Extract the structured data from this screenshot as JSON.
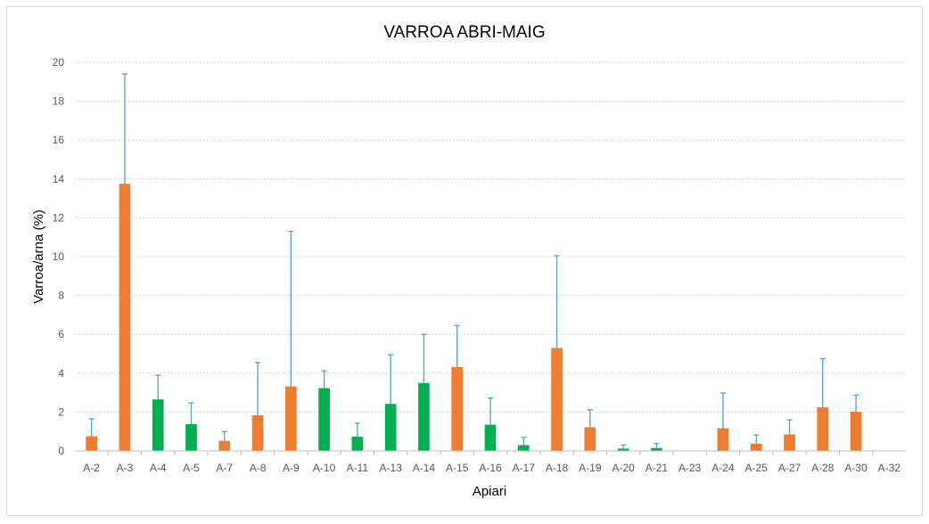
{
  "chart_data": {
    "type": "bar",
    "title": "VARROA ABRI-MAIG",
    "xlabel": "Apiari",
    "ylabel": "Varroa/arna (%)",
    "ylim": [
      0,
      20
    ],
    "yticks": [
      0,
      2,
      4,
      6,
      8,
      10,
      12,
      14,
      16,
      18,
      20
    ],
    "grid": true,
    "categories": [
      "A-2",
      "A-3",
      "A-4",
      "A-5",
      "A-7",
      "A-8",
      "A-9",
      "A-10",
      "A-11",
      "A-13",
      "A-14",
      "A-15",
      "A-16",
      "A-17",
      "A-18",
      "A-19",
      "A-20",
      "A-21",
      "A-23",
      "A-24",
      "A-25",
      "A-27",
      "A-28",
      "A-30",
      "A-32"
    ],
    "values": [
      0.75,
      13.75,
      2.65,
      1.38,
      0.52,
      1.83,
      3.32,
      3.23,
      0.73,
      2.42,
      3.5,
      4.32,
      1.35,
      0.3,
      5.3,
      1.22,
      0.12,
      0.15,
      0,
      1.17,
      0.37,
      0.85,
      2.25,
      2.02,
      0
    ],
    "error_upper": [
      1.65,
      19.4,
      3.9,
      2.47,
      1.0,
      4.55,
      11.3,
      4.12,
      1.43,
      4.95,
      6.0,
      6.45,
      2.72,
      0.7,
      10.05,
      2.12,
      0.3,
      0.38,
      0,
      2.98,
      0.82,
      1.6,
      4.75,
      2.87,
      0
    ],
    "bar_colors": [
      "#ed7d31",
      "#ed7d31",
      "#00b050",
      "#00b050",
      "#ed7d31",
      "#ed7d31",
      "#ed7d31",
      "#00b050",
      "#00b050",
      "#00b050",
      "#00b050",
      "#ed7d31",
      "#00b050",
      "#00b050",
      "#ed7d31",
      "#ed7d31",
      "#00b050",
      "#00b050",
      "#ed7d31",
      "#ed7d31",
      "#ed7d31",
      "#ed7d31",
      "#ed7d31",
      "#ed7d31",
      "#ed7d31"
    ],
    "error_color": "#5b9bd5",
    "gridline_color": "#d9d9d9"
  }
}
